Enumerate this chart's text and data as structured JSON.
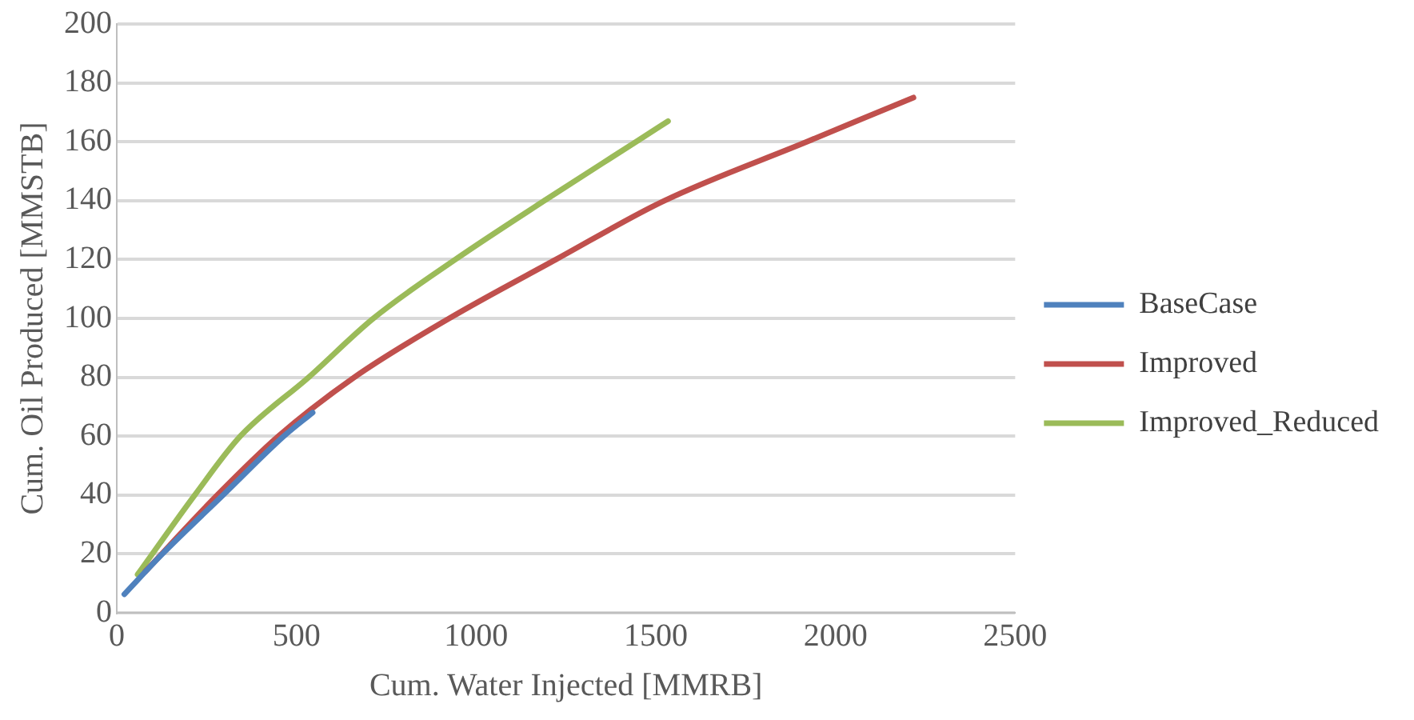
{
  "chart_data": {
    "type": "line",
    "xlabel": "Cum. Water Injected [MMRB]",
    "ylabel": "Cum. Oil Produced [MMSTB]",
    "xlim": [
      0,
      2500
    ],
    "xticks": [
      0,
      500,
      1000,
      1500,
      2000,
      2500
    ],
    "ylim": [
      0,
      200
    ],
    "yticks": [
      0,
      20,
      40,
      60,
      80,
      100,
      120,
      140,
      160,
      180,
      200
    ],
    "grid": "y",
    "legend": "right",
    "marker": "none",
    "line_style": "solid",
    "series": [
      {
        "name": "BaseCase",
        "color": "#4f81bd",
        "x": [
          21,
          127,
          296,
          465,
          545
        ],
        "values": [
          6.3,
          20,
          40,
          60,
          68
        ]
      },
      {
        "name": "Improved",
        "color": "#c0504d",
        "x": [
          79,
          280,
          450,
          661,
          925,
          1222,
          1524,
          1920,
          2217
        ],
        "values": [
          14,
          40,
          60,
          80,
          100,
          120,
          140,
          160,
          175
        ]
      },
      {
        "name": "Improved_Reduced",
        "color": "#9bbb59",
        "x": [
          58,
          217,
          344,
          534,
          714,
          942,
          1190,
          1445,
          1534
        ],
        "values": [
          13,
          40,
          60,
          80,
          100,
          120,
          140,
          160,
          167
        ]
      }
    ]
  }
}
